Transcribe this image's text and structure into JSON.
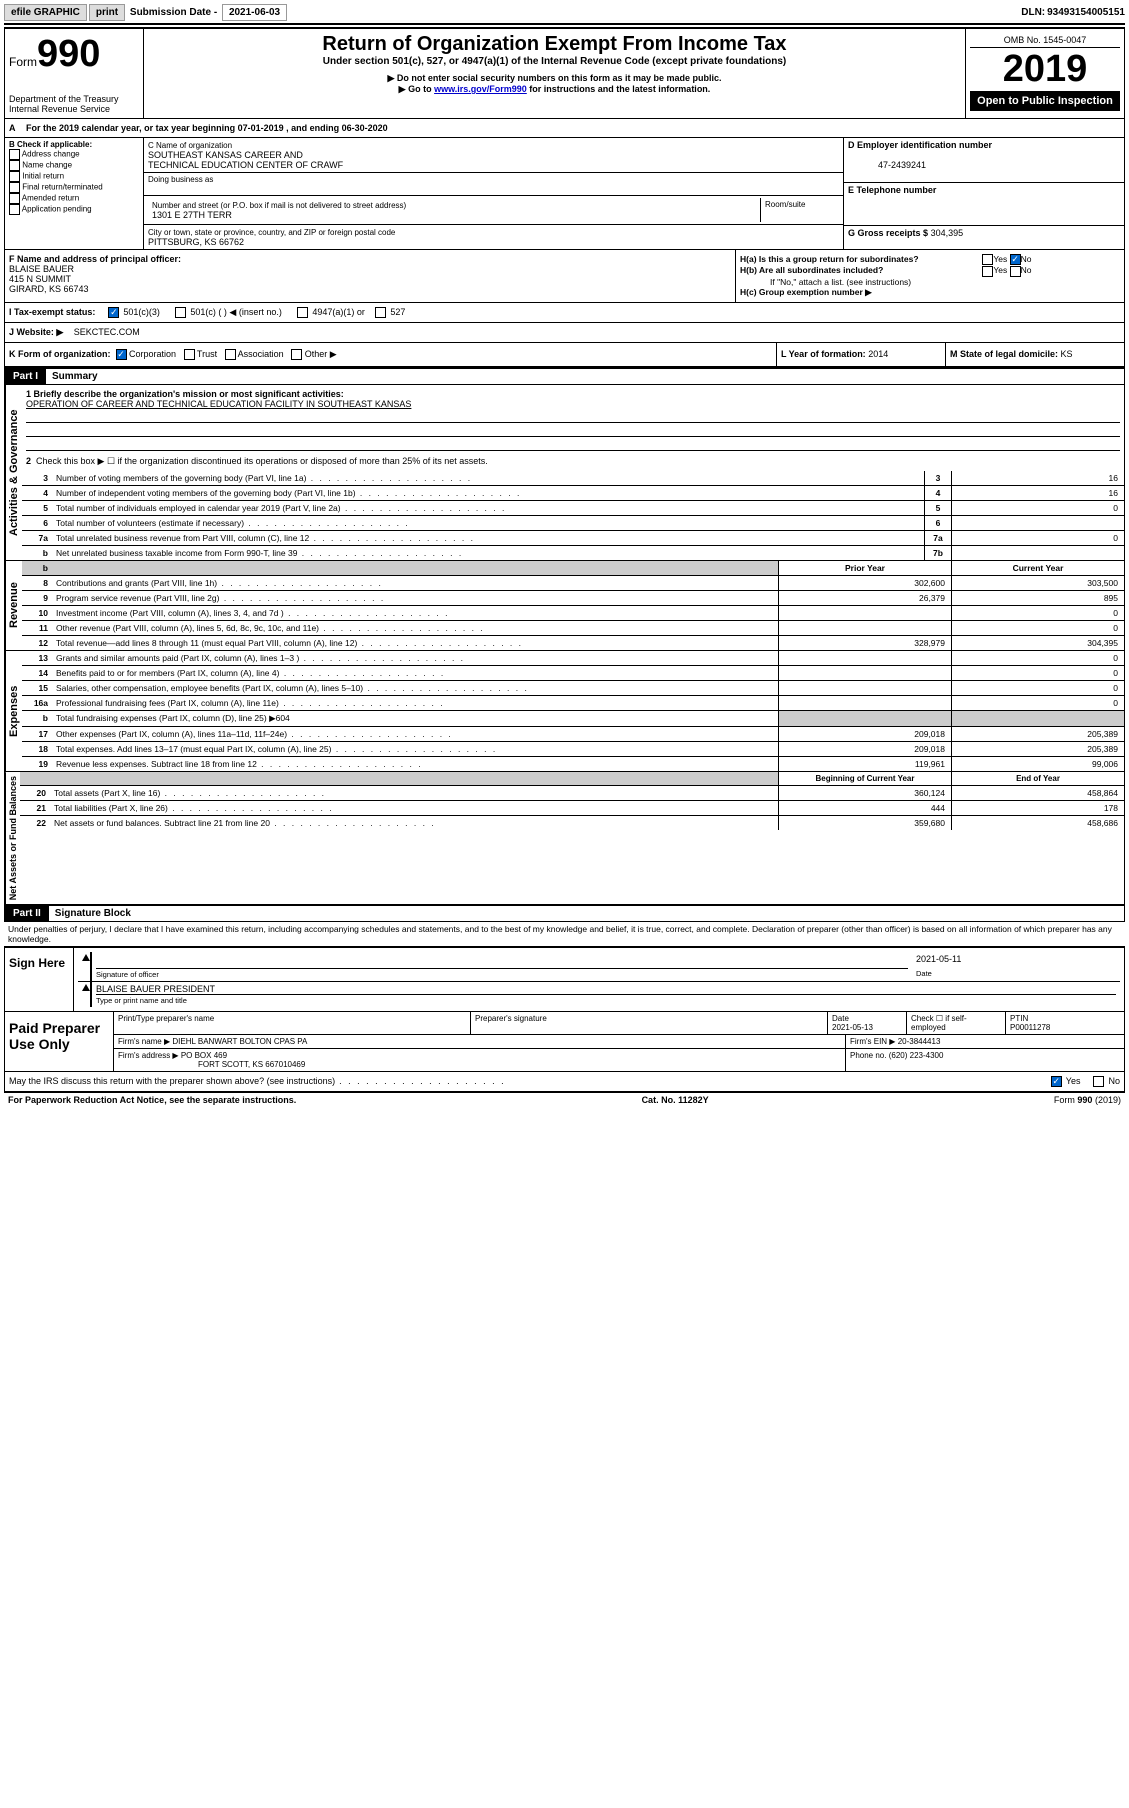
{
  "topbar": {
    "efile_label": "efile GRAPHIC",
    "print_btn": "print",
    "submission_label": "Submission Date",
    "submission_date": "2021-06-03",
    "dln_label": "DLN:",
    "dln": "93493154005151"
  },
  "header": {
    "form_prefix": "Form",
    "form_number": "990",
    "dept": "Department of the Treasury",
    "irs": "Internal Revenue Service",
    "title": "Return of Organization Exempt From Income Tax",
    "subtitle": "Under section 501(c), 527, or 4947(a)(1) of the Internal Revenue Code (except private foundations)",
    "instr1": "▶ Do not enter social security numbers on this form as it may be made public.",
    "instr2_pre": "▶ Go to ",
    "instr2_link": "www.irs.gov/Form990",
    "instr2_post": " for instructions and the latest information.",
    "omb_label": "OMB No. 1545-0047",
    "year": "2019",
    "open_public": "Open to Public Inspection"
  },
  "period": {
    "line_a": "For the 2019 calendar year, or tax year beginning 07-01-2019   , and ending 06-30-2020"
  },
  "box_b": {
    "header": "B Check if applicable:",
    "opts": [
      "Address change",
      "Name change",
      "Initial return",
      "Final return/terminated",
      "Amended return",
      "Application pending"
    ]
  },
  "box_c": {
    "name_label": "C Name of organization",
    "name_line1": "SOUTHEAST KANSAS CAREER AND",
    "name_line2": "TECHNICAL EDUCATION CENTER OF CRAWF",
    "dba_label": "Doing business as",
    "street_label": "Number and street (or P.O. box if mail is not delivered to street address)",
    "room_label": "Room/suite",
    "street": "1301 E 27TH TERR",
    "city_label": "City or town, state or province, country, and ZIP or foreign postal code",
    "city": "PITTSBURG, KS  66762"
  },
  "box_d": {
    "label": "D Employer identification number",
    "value": "47-2439241"
  },
  "box_e": {
    "label": "E Telephone number",
    "value": ""
  },
  "box_g": {
    "label": "G Gross receipts $",
    "value": "304,395"
  },
  "box_f": {
    "label": "F  Name and address of principal officer:",
    "name": "BLAISE BAUER",
    "street": "415 N SUMMIT",
    "city": "GIRARD, KS  66743"
  },
  "box_h": {
    "ha_label": "H(a)  Is this a group return for subordinates?",
    "ha_yes": "Yes",
    "ha_no": "No",
    "hb_label": "H(b)  Are all subordinates included?",
    "hb_yes": "Yes",
    "hb_no": "No",
    "hb_note": "If \"No,\" attach a list. (see instructions)",
    "hc_label": "H(c)  Group exemption number ▶"
  },
  "box_i": {
    "label": "I  Tax-exempt status:",
    "o1": "501(c)(3)",
    "o2": "501(c) (  ) ◀ (insert no.)",
    "o3": "4947(a)(1) or",
    "o4": "527"
  },
  "box_j": {
    "label": "J  Website: ▶",
    "value": "SEKCTEC.COM"
  },
  "box_k": {
    "label": "K Form of organization:",
    "o1": "Corporation",
    "o2": "Trust",
    "o3": "Association",
    "o4": "Other ▶"
  },
  "box_l": {
    "label": "L Year of formation:",
    "value": "2014"
  },
  "box_m": {
    "label": "M State of legal domicile:",
    "value": "KS"
  },
  "part1": {
    "header": "Part I",
    "title": "Summary",
    "line1_label": "1  Briefly describe the organization's mission or most significant activities:",
    "line1_value": "OPERATION OF CAREER AND TECHNICAL EDUCATION FACILITY IN SOUTHEAST KANSAS",
    "line2": "Check this box ▶ ☐  if the organization discontinued its operations or disposed of more than 25% of its net assets.",
    "sections": {
      "gov_label": "Activities & Governance",
      "rev_label": "Revenue",
      "exp_label": "Expenses",
      "net_label": "Net Assets or Fund Balances"
    },
    "gov_lines": [
      {
        "n": "3",
        "d": "Number of voting members of the governing body (Part VI, line 1a)",
        "box": "3",
        "v": "16"
      },
      {
        "n": "4",
        "d": "Number of independent voting members of the governing body (Part VI, line 1b)",
        "box": "4",
        "v": "16"
      },
      {
        "n": "5",
        "d": "Total number of individuals employed in calendar year 2019 (Part V, line 2a)",
        "box": "5",
        "v": "0"
      },
      {
        "n": "6",
        "d": "Total number of volunteers (estimate if necessary)",
        "box": "6",
        "v": ""
      },
      {
        "n": "7a",
        "d": "Total unrelated business revenue from Part VIII, column (C), line 12",
        "box": "7a",
        "v": "0"
      },
      {
        "n": "b",
        "d": "Net unrelated business taxable income from Form 990-T, line 39",
        "box": "7b",
        "v": ""
      }
    ],
    "col_headers": {
      "prior": "Prior Year",
      "current": "Current Year",
      "begin": "Beginning of Current Year",
      "end": "End of Year"
    },
    "rev_lines": [
      {
        "n": "8",
        "d": "Contributions and grants (Part VIII, line 1h)",
        "p": "302,600",
        "c": "303,500"
      },
      {
        "n": "9",
        "d": "Program service revenue (Part VIII, line 2g)",
        "p": "26,379",
        "c": "895"
      },
      {
        "n": "10",
        "d": "Investment income (Part VIII, column (A), lines 3, 4, and 7d )",
        "p": "",
        "c": "0"
      },
      {
        "n": "11",
        "d": "Other revenue (Part VIII, column (A), lines 5, 6d, 8c, 9c, 10c, and 11e)",
        "p": "",
        "c": "0"
      },
      {
        "n": "12",
        "d": "Total revenue—add lines 8 through 11 (must equal Part VIII, column (A), line 12)",
        "p": "328,979",
        "c": "304,395"
      }
    ],
    "exp_lines": [
      {
        "n": "13",
        "d": "Grants and similar amounts paid (Part IX, column (A), lines 1–3 )",
        "p": "",
        "c": "0"
      },
      {
        "n": "14",
        "d": "Benefits paid to or for members (Part IX, column (A), line 4)",
        "p": "",
        "c": "0"
      },
      {
        "n": "15",
        "d": "Salaries, other compensation, employee benefits (Part IX, column (A), lines 5–10)",
        "p": "",
        "c": "0"
      },
      {
        "n": "16a",
        "d": "Professional fundraising fees (Part IX, column (A), line 11e)",
        "p": "",
        "c": "0"
      },
      {
        "n": "b",
        "d": "Total fundraising expenses (Part IX, column (D), line 25) ▶604",
        "p": null,
        "c": null,
        "shaded": true
      },
      {
        "n": "17",
        "d": "Other expenses (Part IX, column (A), lines 11a–11d, 11f–24e)",
        "p": "209,018",
        "c": "205,389"
      },
      {
        "n": "18",
        "d": "Total expenses. Add lines 13–17 (must equal Part IX, column (A), line 25)",
        "p": "209,018",
        "c": "205,389"
      },
      {
        "n": "19",
        "d": "Revenue less expenses. Subtract line 18 from line 12",
        "p": "119,961",
        "c": "99,006"
      }
    ],
    "net_lines": [
      {
        "n": "20",
        "d": "Total assets (Part X, line 16)",
        "p": "360,124",
        "c": "458,864"
      },
      {
        "n": "21",
        "d": "Total liabilities (Part X, line 26)",
        "p": "444",
        "c": "178"
      },
      {
        "n": "22",
        "d": "Net assets or fund balances. Subtract line 21 from line 20",
        "p": "359,680",
        "c": "458,686"
      }
    ]
  },
  "part2": {
    "header": "Part II",
    "title": "Signature Block",
    "declaration": "Under penalties of perjury, I declare that I have examined this return, including accompanying schedules and statements, and to the best of my knowledge and belief, it is true, correct, and complete. Declaration of preparer (other than officer) is based on all information of which preparer has any knowledge."
  },
  "sign": {
    "here_label": "Sign Here",
    "sig_label": "Signature of officer",
    "date_label": "Date",
    "date": "2021-05-11",
    "name": "BLAISE BAUER  PRESIDENT",
    "name_label": "Type or print name and title"
  },
  "paid": {
    "here_label": "Paid Preparer Use Only",
    "h1": "Print/Type preparer's name",
    "h2": "Preparer's signature",
    "h3": "Date",
    "h3v": "2021-05-13",
    "h4": "Check ☐ if self-employed",
    "h5": "PTIN",
    "h5v": "P00011278",
    "firm_name_label": "Firm's name    ▶",
    "firm_name": "DIEHL BANWART BOLTON CPAS PA",
    "firm_ein_label": "Firm's EIN ▶",
    "firm_ein": "20-3844413",
    "firm_addr_label": "Firm's address ▶",
    "firm_addr1": "PO BOX 469",
    "firm_addr2": "FORT SCOTT, KS  667010469",
    "phone_label": "Phone no.",
    "phone": "(620) 223-4300",
    "discuss": "May the IRS discuss this return with the preparer shown above? (see instructions)",
    "yes": "Yes",
    "no": "No"
  },
  "footer": {
    "left": "For Paperwork Reduction Act Notice, see the separate instructions.",
    "center": "Cat. No. 11282Y",
    "right": "Form 990 (2019)"
  }
}
